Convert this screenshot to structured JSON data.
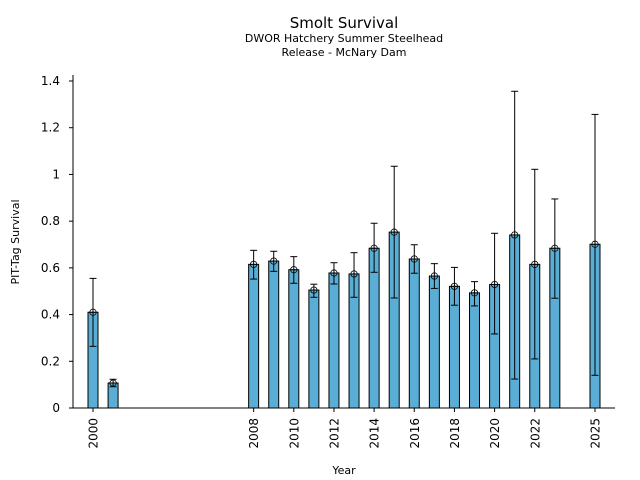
{
  "chart_data": {
    "type": "bar",
    "title": "Smolt Survival",
    "subtitle_lines": [
      "DWOR Hatchery Summer Steelhead",
      "Release - McNary Dam"
    ],
    "xlabel": "Year",
    "ylabel": "PIT-Tag Survival",
    "ylim": [
      0,
      1.4
    ],
    "yticks": [
      0,
      0.2,
      0.4,
      0.6,
      0.8,
      1,
      1.2,
      1.4
    ],
    "ytick_labels": [
      "0",
      "0.2",
      "0.4",
      "0.6",
      "0.8",
      "1",
      "1.2",
      "1.4"
    ],
    "xlim": [
      1998.9,
      2026
    ],
    "xticks": [
      2000,
      2008,
      2010,
      2012,
      2014,
      2016,
      2018,
      2020,
      2022,
      2025
    ],
    "xtick_labels": [
      "2000",
      "2008",
      "2010",
      "2012",
      "2014",
      "2016",
      "2018",
      "2020",
      "2022",
      "2025"
    ],
    "grid": false,
    "legend": "none",
    "bar_color": "#5aaed6",
    "series": [
      {
        "name": "PIT-Tag Survival",
        "x": [
          2000,
          2001,
          2008,
          2009,
          2010,
          2011,
          2012,
          2013,
          2014,
          2015,
          2016,
          2017,
          2018,
          2019,
          2020,
          2021,
          2022,
          2023,
          2025
        ],
        "values": [
          0.41,
          0.107,
          0.615,
          0.629,
          0.592,
          0.505,
          0.578,
          0.574,
          0.684,
          0.753,
          0.638,
          0.565,
          0.521,
          0.493,
          0.529,
          0.741,
          0.615,
          0.684,
          0.701
        ],
        "err_low": [
          0.264,
          0.091,
          0.552,
          0.585,
          0.534,
          0.474,
          0.531,
          0.474,
          0.581,
          0.471,
          0.577,
          0.512,
          0.44,
          0.437,
          0.317,
          0.124,
          0.21,
          0.47,
          0.14
        ],
        "err_high": [
          0.555,
          0.123,
          0.675,
          0.671,
          0.648,
          0.53,
          0.622,
          0.665,
          0.791,
          1.035,
          0.699,
          0.618,
          0.602,
          0.541,
          0.748,
          1.356,
          1.022,
          0.895,
          1.257
        ]
      }
    ]
  }
}
